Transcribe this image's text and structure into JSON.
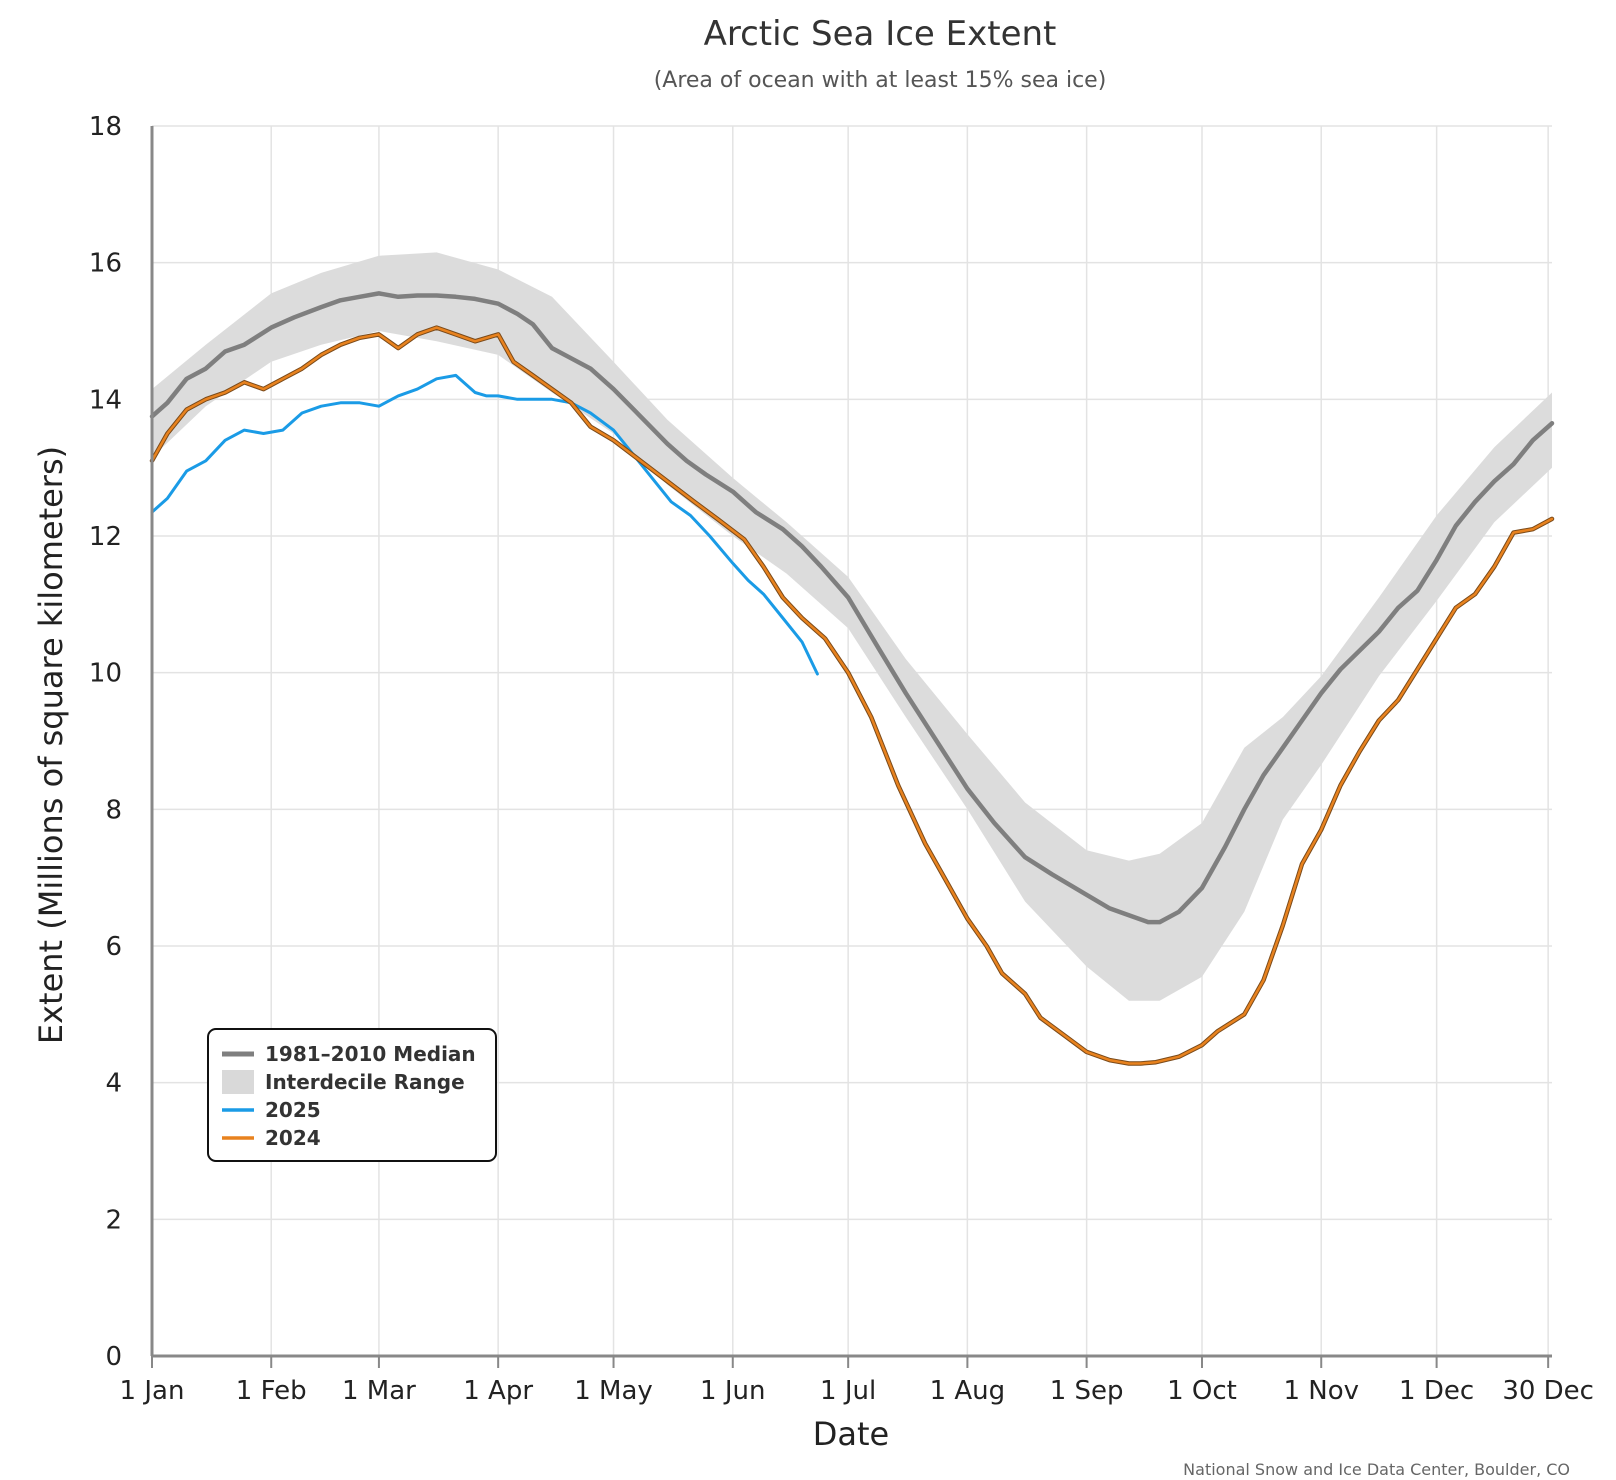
{
  "chart_data": {
    "type": "line",
    "title": "Arctic Sea Ice Extent",
    "subtitle": "(Area of ocean with at least 15% sea ice)",
    "xlabel": "Date",
    "ylabel": "Extent (Millions of square kilometers)",
    "credit": "National Snow and Ice Data Center, Boulder, CO",
    "ylim": [
      0,
      18
    ],
    "xlim": [
      1,
      365
    ],
    "x_unit": "day of year",
    "yticks": [
      0,
      2,
      4,
      6,
      8,
      10,
      12,
      14,
      16,
      18
    ],
    "xticks": [
      {
        "day": 1,
        "label": "1 Jan"
      },
      {
        "day": 32,
        "label": "1 Feb"
      },
      {
        "day": 60,
        "label": "1 Mar"
      },
      {
        "day": 91,
        "label": "1 Apr"
      },
      {
        "day": 121,
        "label": "1 May"
      },
      {
        "day": 152,
        "label": "1 Jun"
      },
      {
        "day": 182,
        "label": "1 Jul"
      },
      {
        "day": 213,
        "label": "1 Aug"
      },
      {
        "day": 244,
        "label": "1 Sep"
      },
      {
        "day": 274,
        "label": "1 Oct"
      },
      {
        "day": 305,
        "label": "1 Nov"
      },
      {
        "day": 335,
        "label": "1 Dec"
      },
      {
        "day": 364,
        "label": "30 Dec"
      }
    ],
    "grid": true,
    "legend": {
      "placement": "lower-left",
      "items": [
        {
          "label": "1981–2010 Median",
          "kind": "line",
          "color": "#7f7f7f"
        },
        {
          "label": "Interdecile Range",
          "kind": "area",
          "color": "#d9d9d9"
        },
        {
          "label": "2025",
          "kind": "line",
          "color": "#1a9be6"
        },
        {
          "label": "2024",
          "kind": "line",
          "color": "#e8821e"
        }
      ]
    },
    "band": {
      "name": "Interdecile Range",
      "color": "#dcdcdc",
      "x": [
        1,
        15,
        32,
        45,
        60,
        75,
        91,
        105,
        121,
        135,
        152,
        166,
        182,
        197,
        213,
        228,
        244,
        255,
        263,
        274,
        285,
        295,
        305,
        320,
        335,
        350,
        365
      ],
      "upper": [
        14.15,
        14.8,
        15.55,
        15.85,
        16.1,
        16.15,
        15.9,
        15.5,
        14.55,
        13.7,
        12.85,
        12.2,
        11.4,
        10.2,
        9.1,
        8.1,
        7.4,
        7.25,
        7.35,
        7.8,
        8.9,
        9.35,
        9.95,
        11.1,
        12.3,
        13.3,
        14.1
      ],
      "lower": [
        13.15,
        13.9,
        14.55,
        14.8,
        15.0,
        14.85,
        14.65,
        14.1,
        13.5,
        12.75,
        12.0,
        11.45,
        10.65,
        9.35,
        8.0,
        6.65,
        5.7,
        5.2,
        5.2,
        5.55,
        6.5,
        7.85,
        8.65,
        9.95,
        11.05,
        12.2,
        13.0
      ]
    },
    "series": [
      {
        "name": "1981–2010 Median",
        "color": "#7f7f7f",
        "x": [
          1,
          5,
          10,
          15,
          20,
          25,
          32,
          38,
          45,
          50,
          55,
          60,
          65,
          70,
          75,
          80,
          85,
          91,
          96,
          100,
          105,
          110,
          115,
          121,
          128,
          135,
          140,
          145,
          152,
          158,
          165,
          170,
          175,
          182,
          190,
          197,
          205,
          213,
          220,
          228,
          235,
          244,
          250,
          255,
          260,
          263,
          268,
          274,
          280,
          285,
          290,
          295,
          300,
          305,
          310,
          320,
          325,
          330,
          335,
          340,
          345,
          350,
          355,
          360,
          365
        ],
        "y": [
          13.75,
          13.95,
          14.3,
          14.45,
          14.7,
          14.8,
          15.05,
          15.2,
          15.35,
          15.45,
          15.5,
          15.55,
          15.5,
          15.52,
          15.52,
          15.5,
          15.47,
          15.4,
          15.25,
          15.1,
          14.75,
          14.6,
          14.45,
          14.15,
          13.75,
          13.35,
          13.1,
          12.9,
          12.65,
          12.35,
          12.1,
          11.85,
          11.55,
          11.1,
          10.35,
          9.7,
          9.0,
          8.3,
          7.8,
          7.3,
          7.05,
          6.75,
          6.55,
          6.45,
          6.35,
          6.35,
          6.5,
          6.85,
          7.45,
          8.0,
          8.5,
          8.9,
          9.3,
          9.7,
          10.05,
          10.6,
          10.95,
          11.2,
          11.65,
          12.15,
          12.5,
          12.8,
          13.05,
          13.4,
          13.65
        ]
      },
      {
        "name": "2025",
        "color": "#1a9be6",
        "x": [
          1,
          5,
          10,
          15,
          20,
          25,
          30,
          35,
          40,
          45,
          50,
          55,
          60,
          65,
          70,
          75,
          80,
          85,
          88,
          91,
          96,
          100,
          105,
          110,
          115,
          121,
          126,
          131,
          136,
          141,
          146,
          152,
          156,
          160,
          165,
          170,
          174
        ],
        "y": [
          12.35,
          12.55,
          12.95,
          13.1,
          13.4,
          13.55,
          13.5,
          13.55,
          13.8,
          13.9,
          13.95,
          13.95,
          13.9,
          14.05,
          14.15,
          14.3,
          14.35,
          14.1,
          14.05,
          14.05,
          14.0,
          14.0,
          14.0,
          13.95,
          13.8,
          13.55,
          13.2,
          12.85,
          12.5,
          12.3,
          12.0,
          11.6,
          11.35,
          11.15,
          10.8,
          10.45,
          9.98
        ]
      },
      {
        "name": "2024",
        "color": "#e8821e",
        "x": [
          1,
          5,
          10,
          15,
          20,
          25,
          30,
          35,
          40,
          45,
          50,
          55,
          60,
          65,
          70,
          75,
          80,
          85,
          91,
          95,
          100,
          105,
          110,
          115,
          121,
          128,
          135,
          142,
          148,
          155,
          160,
          165,
          170,
          176,
          182,
          188,
          195,
          202,
          208,
          213,
          218,
          222,
          228,
          232,
          238,
          244,
          250,
          255,
          258,
          262,
          268,
          274,
          278,
          285,
          290,
          295,
          300,
          305,
          310,
          315,
          320,
          325,
          330,
          335,
          340,
          345,
          350,
          355,
          360,
          365
        ],
        "y": [
          13.1,
          13.5,
          13.85,
          14.0,
          14.1,
          14.25,
          14.15,
          14.3,
          14.45,
          14.65,
          14.8,
          14.9,
          14.95,
          14.75,
          14.95,
          15.05,
          14.95,
          14.85,
          14.95,
          14.55,
          14.35,
          14.15,
          13.95,
          13.6,
          13.4,
          13.1,
          12.8,
          12.5,
          12.25,
          11.95,
          11.55,
          11.1,
          10.8,
          10.5,
          10.0,
          9.35,
          8.35,
          7.5,
          6.9,
          6.4,
          6.0,
          5.6,
          5.3,
          4.95,
          4.7,
          4.45,
          4.33,
          4.28,
          4.28,
          4.3,
          4.38,
          4.55,
          4.75,
          5.0,
          5.5,
          6.3,
          7.2,
          7.7,
          8.35,
          8.85,
          9.3,
          9.6,
          10.05,
          10.5,
          10.95,
          11.15,
          11.55,
          12.05,
          12.1,
          12.25
        ]
      }
    ]
  }
}
